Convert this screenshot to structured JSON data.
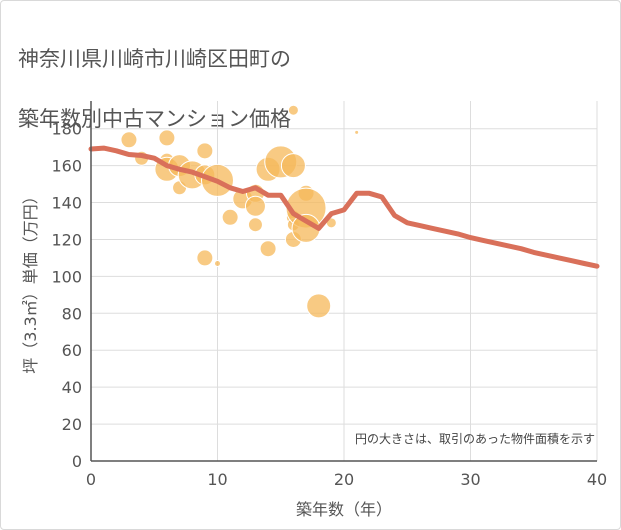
{
  "title_lines": [
    "神奈川県川崎市川崎区田町の",
    "築年数別中古マンション価格"
  ],
  "chart_data": {
    "type": "scatter",
    "xlabel": "築年数（年）",
    "ylabel": "坪（3.3㎡）単価（万円）",
    "note": "円の大きさは、取引のあった物件面積を示す",
    "xlim": [
      0,
      40
    ],
    "ylim": [
      0,
      195
    ],
    "x_ticks": [
      0,
      10,
      20,
      30,
      40
    ],
    "y_ticks": [
      0,
      20,
      40,
      60,
      80,
      100,
      120,
      140,
      160,
      180
    ],
    "grid": true,
    "colors": {
      "bubble": "#f5b85a",
      "line": "#d9705a",
      "grid": "#dddddd",
      "axis": "#555555"
    },
    "bubbles": [
      {
        "x": 3,
        "y": 174,
        "r": 8
      },
      {
        "x": 4,
        "y": 164,
        "r": 7
      },
      {
        "x": 6,
        "y": 175,
        "r": 8
      },
      {
        "x": 6,
        "y": 163,
        "r": 7
      },
      {
        "x": 6,
        "y": 158,
        "r": 12
      },
      {
        "x": 7,
        "y": 160,
        "r": 11
      },
      {
        "x": 7,
        "y": 148,
        "r": 7
      },
      {
        "x": 8,
        "y": 155,
        "r": 14
      },
      {
        "x": 9,
        "y": 168,
        "r": 8
      },
      {
        "x": 9,
        "y": 155,
        "r": 10
      },
      {
        "x": 9,
        "y": 110,
        "r": 8
      },
      {
        "x": 10,
        "y": 152,
        "r": 16
      },
      {
        "x": 10,
        "y": 107,
        "r": 3
      },
      {
        "x": 11,
        "y": 132,
        "r": 8
      },
      {
        "x": 12,
        "y": 142,
        "r": 10
      },
      {
        "x": 13,
        "y": 145,
        "r": 9
      },
      {
        "x": 13,
        "y": 138,
        "r": 10
      },
      {
        "x": 13,
        "y": 128,
        "r": 7
      },
      {
        "x": 14,
        "y": 158,
        "r": 12
      },
      {
        "x": 14,
        "y": 115,
        "r": 8
      },
      {
        "x": 15,
        "y": 162,
        "r": 16
      },
      {
        "x": 16,
        "y": 190,
        "r": 5
      },
      {
        "x": 16,
        "y": 160,
        "r": 12
      },
      {
        "x": 16,
        "y": 132,
        "r": 7
      },
      {
        "x": 16,
        "y": 128,
        "r": 6
      },
      {
        "x": 16,
        "y": 120,
        "r": 8
      },
      {
        "x": 17,
        "y": 145,
        "r": 8
      },
      {
        "x": 17,
        "y": 137,
        "r": 20
      },
      {
        "x": 17,
        "y": 126,
        "r": 14
      },
      {
        "x": 18,
        "y": 84,
        "r": 12
      },
      {
        "x": 19,
        "y": 129,
        "r": 5
      },
      {
        "x": 21,
        "y": 178,
        "r": 2
      }
    ],
    "trend": {
      "x": [
        0,
        1,
        2,
        3,
        4,
        5,
        6,
        7,
        8,
        9,
        10,
        11,
        12,
        13,
        14,
        15,
        16,
        17,
        18,
        19,
        20,
        21,
        22,
        23,
        24,
        25,
        26,
        27,
        28,
        29,
        30,
        31,
        32,
        33,
        34,
        35,
        36,
        37,
        38,
        39,
        40
      ],
      "y": [
        169,
        169.5,
        168,
        166,
        165.5,
        164,
        160,
        158,
        156.5,
        154,
        151.5,
        148,
        146,
        148,
        144,
        144,
        134,
        130,
        126,
        134,
        136,
        145,
        145,
        143,
        133,
        129,
        127.5,
        126,
        124.5,
        123,
        121,
        119.5,
        118,
        116.5,
        115,
        113,
        111.5,
        110,
        108.5,
        107,
        105.5
      ]
    }
  }
}
